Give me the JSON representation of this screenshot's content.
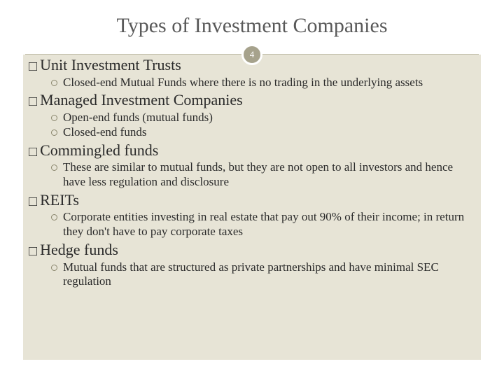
{
  "title": "Types of Investment Companies",
  "page_number": "4",
  "colors": {
    "background": "#e7e4d6",
    "badge_bg": "#a6a28c",
    "badge_border": "#ffffff",
    "badge_text": "#ffffff",
    "title_text": "#595959",
    "body_text": "#2a2a2a",
    "bullet_ring": "#8a866d",
    "divider": "#bfbba8"
  },
  "typography": {
    "title_fontsize": 30,
    "section_fontsize": 22,
    "sub_fontsize": 17,
    "font_family": "Georgia serif"
  },
  "sections": [
    {
      "heading": "Unit Investment Trusts",
      "items": [
        "Closed-end Mutual Funds where there is no trading in the underlying assets"
      ]
    },
    {
      "heading": "Managed Investment Companies",
      "items": [
        "Open-end funds (mutual funds)",
        "Closed-end funds"
      ]
    },
    {
      "heading": "Commingled funds",
      "items": [
        "These are similar to mutual funds, but they are not open to all investors and hence have less regulation and disclosure"
      ]
    },
    {
      "heading": "REITs",
      "items": [
        "Corporate entities investing in real estate that pay out 90% of their income; in return they don't have to pay corporate taxes"
      ]
    },
    {
      "heading": "Hedge funds",
      "items": [
        "Mutual funds that are structured as private partnerships and have minimal SEC regulation"
      ]
    }
  ]
}
